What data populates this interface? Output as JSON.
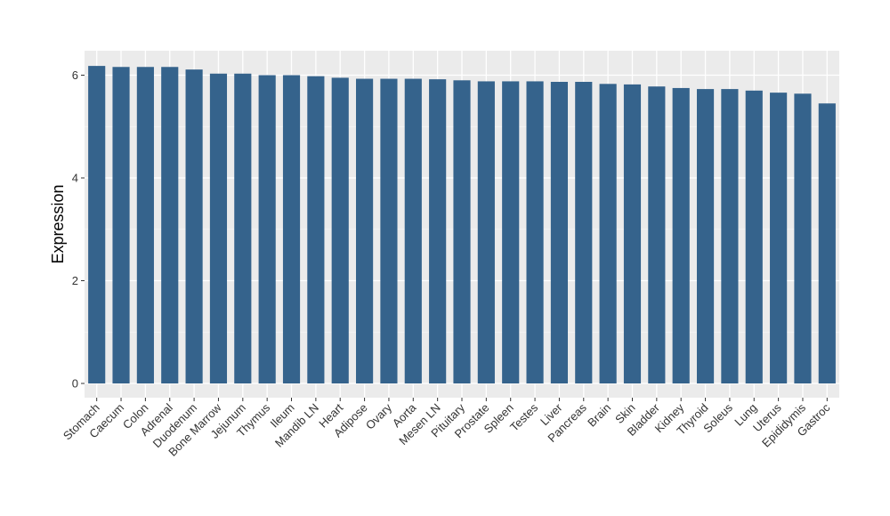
{
  "chart_data": {
    "type": "bar",
    "title": "",
    "xlabel": "",
    "ylabel": "Expression",
    "ylim": [
      0,
      6.45
    ],
    "yticks": [
      0,
      2,
      4,
      6
    ],
    "grid": true,
    "legend": "none",
    "bar_color": "#35638C",
    "panel_color": "#EBEBEB",
    "categories": [
      "Stomach",
      "Caecum",
      "Colon",
      "Adrenal",
      "Duodenum",
      "Bone Marrow",
      "Jejunum",
      "Thymus",
      "Ileum",
      "Mandib LN",
      "Heart",
      "Adipose",
      "Ovary",
      "Aorta",
      "Mesen LN",
      "Pituitary",
      "Prostate",
      "Spleen",
      "Testes",
      "Liver",
      "Pancreas",
      "Brain",
      "Skin",
      "Bladder",
      "Kidney",
      "Thyroid",
      "Soleus",
      "Lung",
      "Uterus",
      "Epididymis",
      "Gastroc"
    ],
    "values": [
      6.18,
      6.16,
      6.16,
      6.16,
      6.11,
      6.03,
      6.03,
      6.0,
      6.0,
      5.98,
      5.95,
      5.93,
      5.93,
      5.93,
      5.92,
      5.9,
      5.88,
      5.88,
      5.88,
      5.87,
      5.87,
      5.83,
      5.82,
      5.78,
      5.75,
      5.73,
      5.73,
      5.7,
      5.66,
      5.64,
      5.45
    ]
  }
}
